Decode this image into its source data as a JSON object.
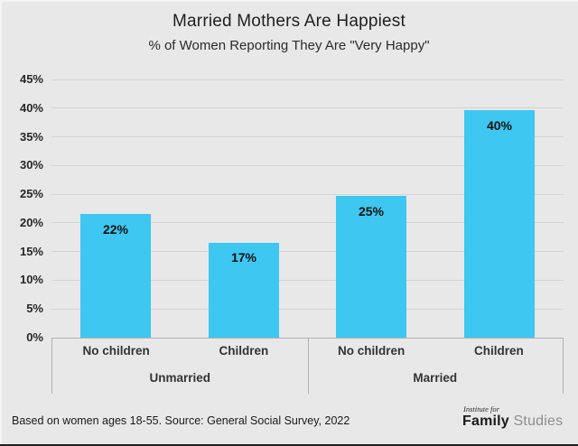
{
  "header": {
    "title": "Married Mothers Are Happiest",
    "subtitle": "% of Women Reporting They Are \"Very Happy\""
  },
  "footer": {
    "note": "Based on women ages 18-55. Source: General Social Survey, 2022"
  },
  "logo": {
    "line1": "Institute for",
    "bold": "Family",
    "light": "Studies"
  },
  "colors": {
    "background": "#e8e8e8",
    "bar": "#3ec7f0",
    "gridline": "#d4d4d4",
    "axis": "#b2b2b2",
    "bar_label": "#111111"
  },
  "chart_data": {
    "type": "bar",
    "title": "Married Mothers Are Happiest",
    "subtitle": "% of Women Reporting They Are \"Very Happy\"",
    "xlabel": "",
    "ylabel": "",
    "ylim": [
      0,
      45
    ],
    "y_ticks": [
      0,
      5,
      10,
      15,
      20,
      25,
      30,
      35,
      40,
      45
    ],
    "y_tick_suffix": "%",
    "grid": true,
    "legend": false,
    "group_labels": [
      "Unmarried",
      "Married"
    ],
    "categories": [
      "No children",
      "Children",
      "No children",
      "Children"
    ],
    "bars": [
      {
        "group": "Unmarried",
        "category": "No children",
        "value": 22,
        "label": "22%",
        "plot_value": 21.5
      },
      {
        "group": "Unmarried",
        "category": "Children",
        "value": 17,
        "label": "17%",
        "plot_value": 16.6
      },
      {
        "group": "Married",
        "category": "No children",
        "value": 25,
        "label": "25%",
        "plot_value": 24.7
      },
      {
        "group": "Married",
        "category": "Children",
        "value": 40,
        "label": "40%",
        "plot_value": 39.6
      }
    ]
  }
}
